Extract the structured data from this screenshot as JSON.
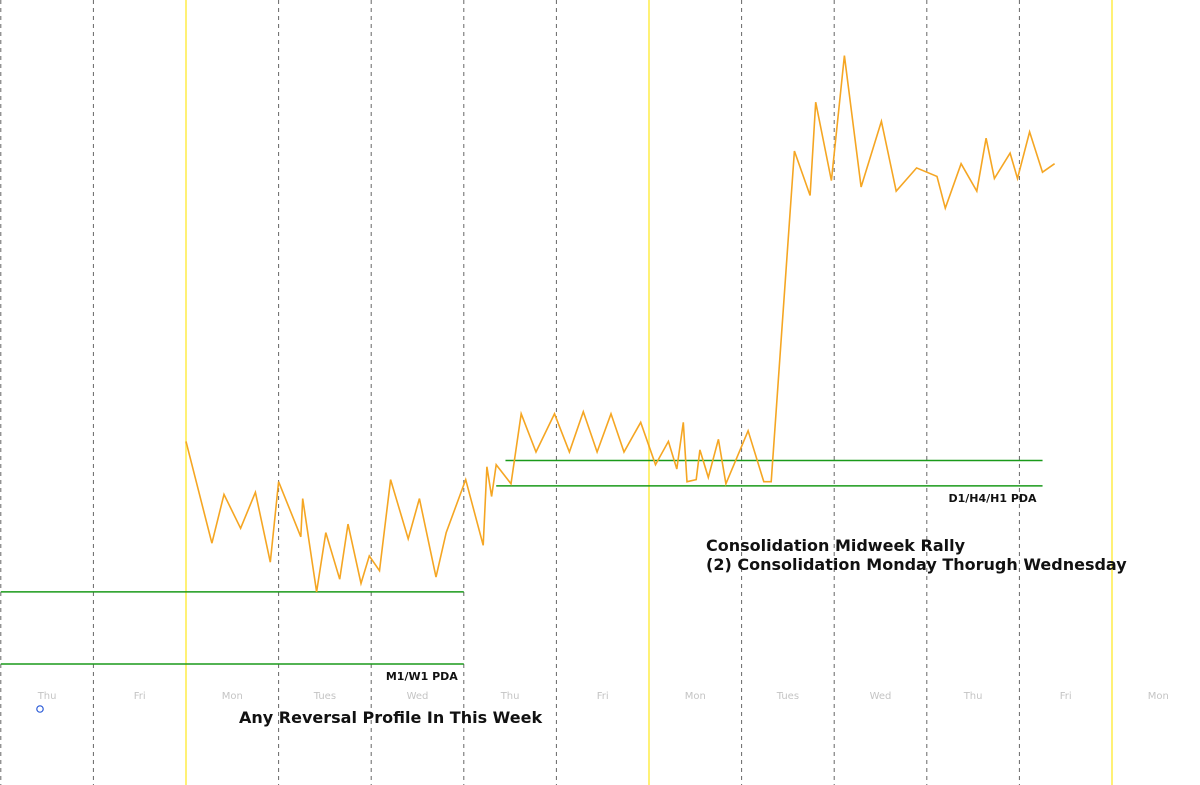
{
  "chart_data": {
    "type": "line",
    "title": "",
    "xlabel": "",
    "ylabel": "",
    "grid": "dashed vertical day separators; yellow vertical week separators",
    "x_tick_labels": [
      "Thu",
      "Fri",
      "Mon",
      "Tues",
      "Wed",
      "Thu",
      "Fri",
      "Mon",
      "Tues",
      "Wed",
      "Thu",
      "Fri",
      "Mon"
    ],
    "series": [
      {
        "color": "#f5a623",
        "x": [
          0.0,
          0.28,
          0.41,
          0.59,
          0.75,
          0.91,
          1.0,
          1.24,
          1.26,
          1.41,
          1.51,
          1.66,
          1.75,
          1.89,
          1.98,
          2.09,
          2.21,
          2.4,
          2.52,
          2.7,
          2.81,
          3.02,
          3.21,
          3.25,
          3.3,
          3.35,
          3.51,
          3.62,
          3.78,
          3.98,
          4.14,
          4.29,
          4.44,
          4.59,
          4.73,
          4.91,
          5.07,
          5.21,
          5.3,
          5.37,
          5.41,
          5.51,
          5.55,
          5.64,
          5.75,
          5.83,
          6.07,
          6.24,
          6.32,
          6.57,
          6.74,
          6.8,
          6.97,
          7.11,
          7.29,
          7.51,
          7.67,
          7.89,
          8.11,
          8.2,
          8.37,
          8.54,
          8.64,
          8.73,
          8.9,
          8.98,
          9.11,
          9.25,
          9.38
        ],
        "y": [
          1.05,
          0.57,
          0.8,
          0.64,
          0.81,
          0.48,
          0.86,
          0.6,
          0.78,
          0.34,
          0.62,
          0.4,
          0.66,
          0.38,
          0.51,
          0.44,
          0.87,
          0.59,
          0.78,
          0.41,
          0.62,
          0.87,
          0.56,
          0.93,
          0.79,
          0.94,
          0.85,
          1.18,
          1.0,
          1.18,
          1.0,
          1.19,
          1.0,
          1.18,
          1.0,
          1.14,
          0.94,
          1.05,
          0.92,
          1.14,
          0.86,
          0.87,
          1.01,
          0.88,
          1.06,
          0.85,
          1.1,
          0.86,
          0.86,
          2.42,
          2.21,
          2.65,
          2.28,
          2.87,
          2.25,
          2.56,
          2.23,
          2.34,
          2.3,
          2.15,
          2.36,
          2.23,
          2.48,
          2.29,
          2.41,
          2.29,
          2.51,
          2.32,
          2.36
        ]
      }
    ],
    "levels": [
      {
        "label": "",
        "y": 0.96,
        "x_from": 3.45,
        "x_to": 9.25
      },
      {
        "label": "D1/H4/H1 PDA",
        "y": 0.84,
        "x_from": 3.35,
        "x_to": 9.25
      },
      {
        "label": "",
        "y": 0.34,
        "x_from": -2.0,
        "x_to": 3.0
      },
      {
        "label": "M1/W1 PDA",
        "y": 0.0,
        "x_from": -2.0,
        "x_to": 3.0
      }
    ],
    "annotations": [
      "Consolidation Midweek Rally",
      "(2) Consolidation Monday Thorugh Wednesday",
      "Any Reversal Profile In This Week"
    ],
    "colors": {
      "price_line": "#f5a623",
      "level_line": "#1a9a1a",
      "week_separator": "#fff176",
      "day_separator": "#666666",
      "marker": "#2b5bd7"
    }
  }
}
